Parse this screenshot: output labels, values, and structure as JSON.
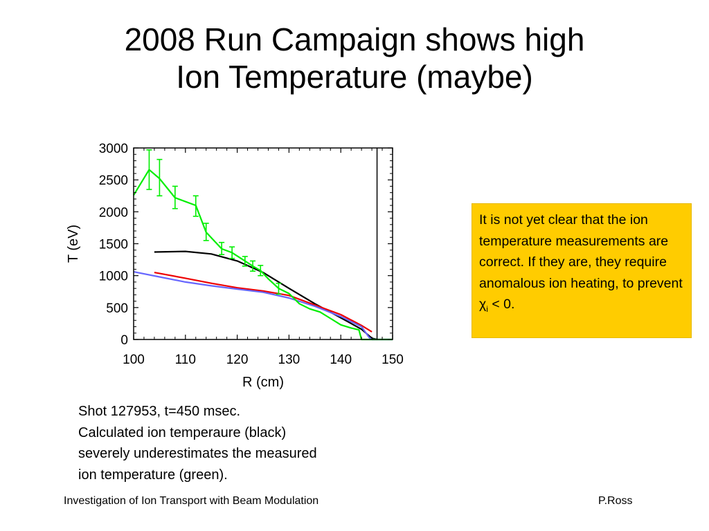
{
  "slide": {
    "title_lines": [
      "2008 Run Campaign shows high",
      "Ion Temperature (maybe)"
    ],
    "note": {
      "text": "It is not yet clear that the ion temperature measurements are correct.  If they are, they require anomalous ion heating, to prevent ",
      "symbol": "χ",
      "subscript": "i",
      "suffix": " < 0.",
      "background": "#ffcc00"
    },
    "caption_lines": [
      "Shot 127953, t=450 msec.",
      "Calculated ion temperaure (black)",
      "severely underestimates the measured",
      "ion temperature (green)."
    ],
    "footer": {
      "left": "Investigation of Ion Transport with Beam Modulation",
      "right": "P.Ross"
    }
  },
  "chart_data": {
    "type": "line",
    "xlabel": "R (cm)",
    "ylabel": "T (eV)",
    "xlim": [
      100,
      150
    ],
    "ylim": [
      0,
      3000
    ],
    "xticks": [
      100,
      110,
      120,
      130,
      140,
      150
    ],
    "yticks": [
      0,
      500,
      1000,
      1500,
      2000,
      2500,
      3000
    ],
    "grid": false,
    "vline_x": 147,
    "series": [
      {
        "color": "#00ee00",
        "points": [
          [
            100,
            2260
          ],
          [
            103,
            2660
          ],
          [
            105,
            2520
          ],
          [
            108,
            2220
          ],
          [
            112,
            2100
          ],
          [
            114,
            1680
          ],
          [
            117,
            1420
          ],
          [
            119,
            1360
          ],
          [
            121.5,
            1230
          ],
          [
            123,
            1150
          ],
          [
            124.5,
            1080
          ],
          [
            126,
            950
          ],
          [
            128,
            800
          ],
          [
            130,
            720
          ],
          [
            132,
            560
          ],
          [
            134,
            480
          ],
          [
            136,
            430
          ],
          [
            138,
            330
          ],
          [
            140,
            230
          ],
          [
            142,
            180
          ],
          [
            143.5,
            150
          ],
          [
            144,
            0
          ],
          [
            150,
            0
          ]
        ],
        "error_bars": [
          {
            "x": 103,
            "lo": 2350,
            "hi": 2970
          },
          {
            "x": 105,
            "lo": 2250,
            "hi": 2820
          },
          {
            "x": 108,
            "lo": 2050,
            "hi": 2400
          },
          {
            "x": 112,
            "lo": 1930,
            "hi": 2250
          },
          {
            "x": 114,
            "lo": 1550,
            "hi": 1820
          },
          {
            "x": 117,
            "lo": 1330,
            "hi": 1520
          },
          {
            "x": 119,
            "lo": 1270,
            "hi": 1450
          },
          {
            "x": 121.5,
            "lo": 1150,
            "hi": 1300
          },
          {
            "x": 123,
            "lo": 1070,
            "hi": 1230
          },
          {
            "x": 124.5,
            "lo": 1000,
            "hi": 1160
          },
          {
            "x": 128,
            "lo": 710,
            "hi": 880
          }
        ]
      },
      {
        "color": "#000000",
        "points": [
          [
            104,
            1370
          ],
          [
            110,
            1380
          ],
          [
            115,
            1340
          ],
          [
            120,
            1230
          ],
          [
            125,
            1050
          ],
          [
            130,
            800
          ],
          [
            135,
            560
          ],
          [
            140,
            340
          ],
          [
            144,
            160
          ],
          [
            146,
            20
          ],
          [
            147,
            0
          ]
        ]
      },
      {
        "color": "#ee0000",
        "points": [
          [
            104,
            1050
          ],
          [
            110,
            960
          ],
          [
            115,
            880
          ],
          [
            120,
            810
          ],
          [
            125,
            760
          ],
          [
            130,
            690
          ],
          [
            135,
            540
          ],
          [
            140,
            390
          ],
          [
            144,
            220
          ],
          [
            146,
            120
          ]
        ]
      },
      {
        "color": "#6666ff",
        "points": [
          [
            100,
            1060
          ],
          [
            105,
            980
          ],
          [
            110,
            900
          ],
          [
            115,
            840
          ],
          [
            120,
            790
          ],
          [
            125,
            740
          ],
          [
            130,
            650
          ],
          [
            135,
            520
          ],
          [
            140,
            360
          ],
          [
            144,
            200
          ],
          [
            145.5,
            30
          ],
          [
            146,
            0
          ],
          [
            150,
            0
          ]
        ]
      }
    ]
  }
}
